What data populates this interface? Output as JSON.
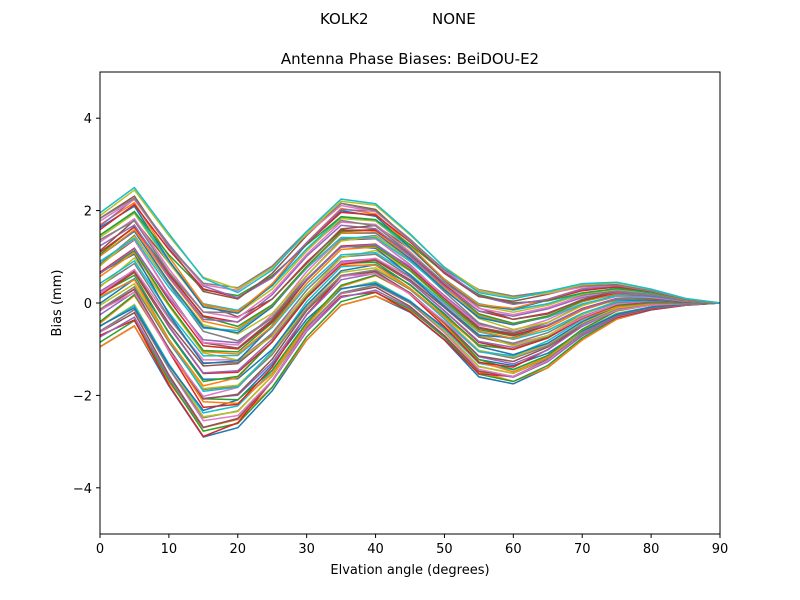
{
  "figure": {
    "suptitle_station": "KOLK2",
    "suptitle_antenna": "NONE"
  },
  "chart_data": {
    "type": "line",
    "title": "Antenna Phase Biases: BeiDOU-E2",
    "xlabel": "Elvation angle (degrees)",
    "ylabel": "Bias (mm)",
    "xlim": [
      0,
      90
    ],
    "ylim": [
      -5,
      5
    ],
    "xticks": [
      0,
      10,
      20,
      30,
      40,
      50,
      60,
      70,
      80,
      90
    ],
    "yticks": [
      -4,
      -2,
      0,
      2,
      4
    ],
    "ytick_labels": [
      "−4",
      "−2",
      "0",
      "2",
      "4"
    ],
    "grid": false,
    "legend": "none",
    "x": [
      0,
      5,
      10,
      15,
      20,
      25,
      30,
      35,
      40,
      45,
      50,
      55,
      60,
      65,
      70,
      75,
      80,
      85,
      90
    ],
    "envelope": {
      "upper": [
        1.95,
        2.5,
        1.5,
        0.6,
        0.35,
        0.8,
        1.55,
        2.25,
        2.15,
        1.5,
        0.8,
        0.3,
        0.15,
        0.25,
        0.42,
        0.45,
        0.3,
        0.1,
        0.0
      ],
      "lower": [
        -0.95,
        -0.5,
        -1.8,
        -2.9,
        -2.7,
        -1.9,
        -0.8,
        -0.05,
        0.15,
        -0.2,
        -0.8,
        -1.6,
        -1.75,
        -1.4,
        -0.8,
        -0.35,
        -0.15,
        -0.05,
        0.0
      ]
    },
    "series_count": 60,
    "colors": [
      "#1f77b4",
      "#ff7f0e",
      "#2ca02c",
      "#d62728",
      "#9467bd",
      "#8c564b",
      "#e377c2",
      "#7f7f7f",
      "#bcbd22",
      "#17becf"
    ]
  }
}
